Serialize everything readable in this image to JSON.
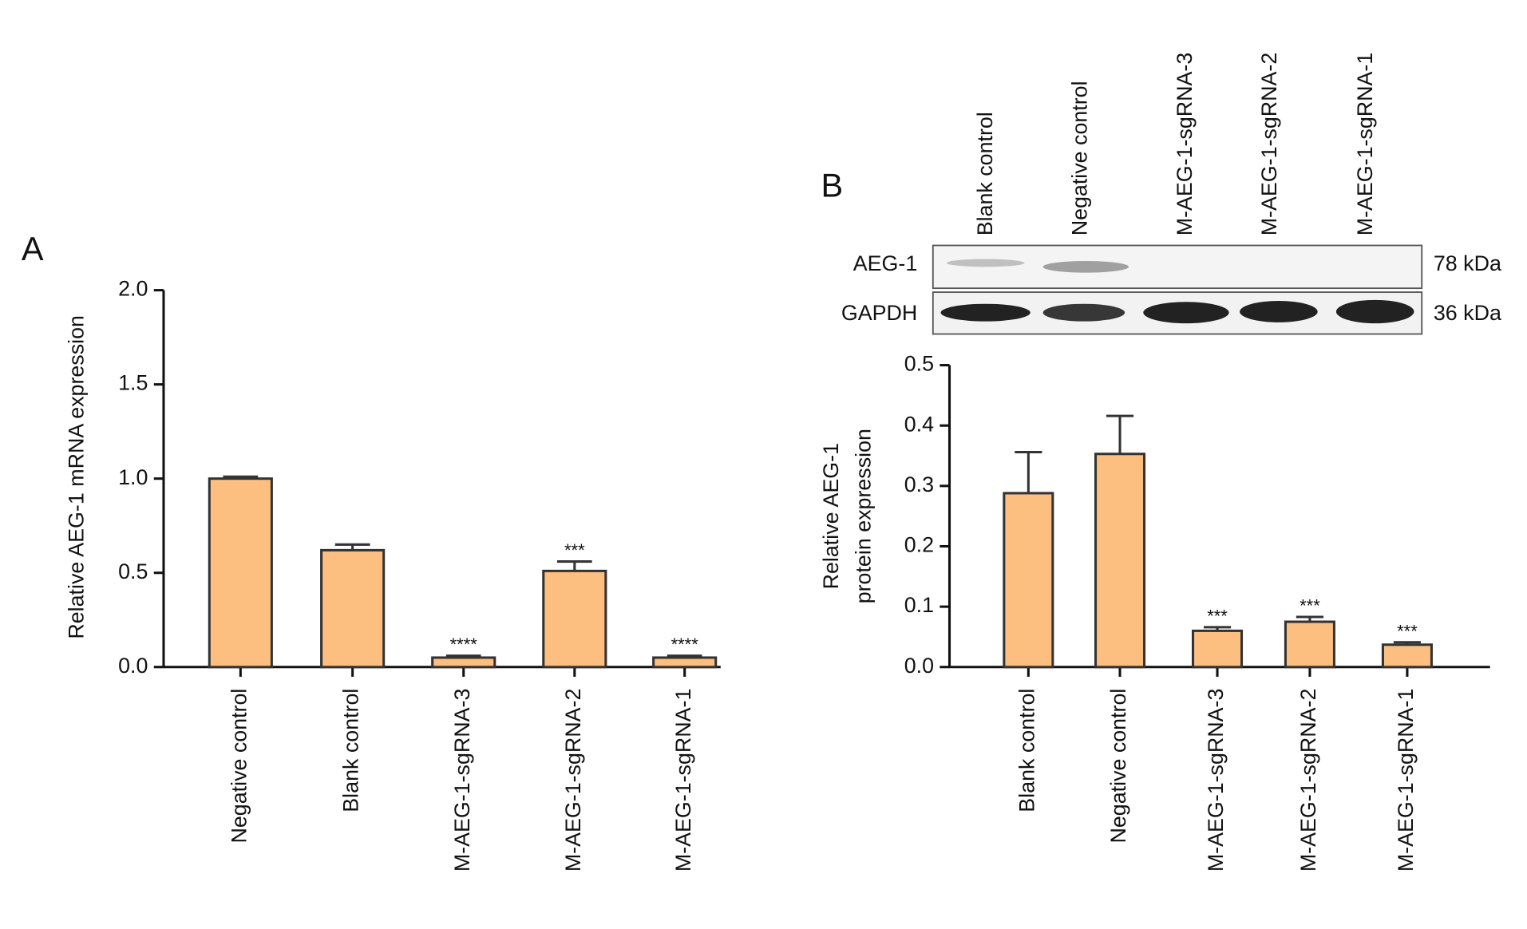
{
  "chart_data": [
    {
      "type": "bar",
      "panel": "A",
      "ylabel": [
        "Relative AEG-1 mRNA expression"
      ],
      "categories": [
        "Negative control",
        "Blank control",
        "M-AEG-1-sgRNA-3",
        "M-AEG-1-sgRNA-2",
        "M-AEG-1-sgRNA-1"
      ],
      "values": [
        1.0,
        0.62,
        0.05,
        0.51,
        0.05
      ],
      "errors": [
        0.01,
        0.03,
        0.01,
        0.05,
        0.01
      ],
      "annotations": [
        null,
        null,
        "****",
        "***",
        "****"
      ],
      "color": "#fdbf80",
      "ylim": [
        0,
        2
      ],
      "yticks": [
        {
          "value": 0,
          "label": "0.0"
        },
        {
          "value": 0.5,
          "label": "0.5"
        },
        {
          "value": 1,
          "label": "1.0"
        },
        {
          "value": 1.5,
          "label": "1.5"
        },
        {
          "value": 2,
          "label": "2.0"
        }
      ]
    },
    {
      "type": "bar",
      "panel": "B",
      "ylabel": [
        "Relative AEG-1",
        "protein expression"
      ],
      "categories": [
        "Blank control",
        "Negative control",
        "M-AEG-1-sgRNA-3",
        "M-AEG-1-sgRNA-2",
        "M-AEG-1-sgRNA-1"
      ],
      "values": [
        0.288,
        0.353,
        0.06,
        0.075,
        0.037
      ],
      "errors": [
        0.068,
        0.063,
        0.006,
        0.008,
        0.004
      ],
      "annotations": [
        null,
        null,
        "***",
        "***",
        "***"
      ],
      "color": "#fdbf80",
      "ylim": [
        0,
        0.5
      ],
      "yticks": [
        {
          "value": 0,
          "label": "0.0"
        },
        {
          "value": 0.1,
          "label": "0.1"
        },
        {
          "value": 0.2,
          "label": "0.2"
        },
        {
          "value": 0.3,
          "label": "0.3"
        },
        {
          "value": 0.4,
          "label": "0.4"
        },
        {
          "value": 0.5,
          "label": "0.5"
        }
      ],
      "blot": {
        "lanes": [
          "Blank control",
          "Negative control",
          "M-AEG-1-sgRNA-3",
          "M-AEG-1-sgRNA-2",
          "M-AEG-1-sgRNA-1"
        ],
        "rows": [
          {
            "name": "AEG-1",
            "size": "78 kDa"
          },
          {
            "name": "GAPDH",
            "size": "36 kDa"
          }
        ]
      }
    }
  ]
}
